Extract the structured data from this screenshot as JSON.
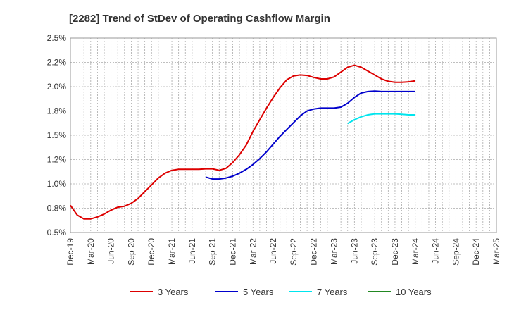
{
  "chart_data": {
    "type": "line",
    "title": "[2282]  Trend of StDev of Operating Cashflow Margin",
    "x_ticks": [
      "Dec-19",
      "Mar-20",
      "Jun-20",
      "Sep-20",
      "Dec-20",
      "Mar-21",
      "Jun-21",
      "Sep-21",
      "Dec-21",
      "Mar-22",
      "Jun-22",
      "Sep-22",
      "Dec-22",
      "Mar-23",
      "Jun-23",
      "Sep-23",
      "Dec-23",
      "Mar-24",
      "Jun-24",
      "Sep-24",
      "Dec-24",
      "Mar-25"
    ],
    "y_ticks": [
      "0.5%",
      "0.8%",
      "1.0%",
      "1.2%",
      "1.5%",
      "1.8%",
      "2.0%",
      "2.2%",
      "2.5%"
    ],
    "ylim": [
      0.5,
      2.5
    ],
    "grid": true,
    "legend_position": "bottom",
    "series": [
      {
        "name": "3 Years",
        "color": "#dd0000",
        "start": 0,
        "values": [
          0.78,
          0.68,
          0.64,
          0.64,
          0.66,
          0.69,
          0.73,
          0.76,
          0.77,
          0.8,
          0.85,
          0.92,
          0.99,
          1.06,
          1.11,
          1.14,
          1.15,
          1.15,
          1.15,
          1.15,
          1.155,
          1.155,
          1.14,
          1.16,
          1.22,
          1.3,
          1.4,
          1.54,
          1.66,
          1.78,
          1.89,
          1.99,
          2.07,
          2.11,
          2.12,
          2.115,
          2.095,
          2.08,
          2.08,
          2.1,
          2.15,
          2.2,
          2.22,
          2.2,
          2.16,
          2.12,
          2.08,
          2.055,
          2.045,
          2.045,
          2.05,
          2.06
        ]
      },
      {
        "name": "5 Years",
        "color": "#0000cc",
        "start": 20,
        "values": [
          1.07,
          1.05,
          1.05,
          1.06,
          1.08,
          1.11,
          1.15,
          1.2,
          1.26,
          1.33,
          1.41,
          1.49,
          1.56,
          1.63,
          1.7,
          1.75,
          1.77,
          1.78,
          1.78,
          1.78,
          1.79,
          1.83,
          1.89,
          1.935,
          1.95,
          1.955,
          1.95,
          1.95,
          1.95,
          1.95,
          1.95,
          1.95
        ]
      },
      {
        "name": "7 Years",
        "color": "#00e5ee",
        "start": 41,
        "values": [
          1.62,
          1.66,
          1.69,
          1.71,
          1.72,
          1.72,
          1.72,
          1.72,
          1.715,
          1.71,
          1.71
        ]
      },
      {
        "name": "10 Years",
        "color": "#228822",
        "start": 0,
        "values": []
      }
    ]
  }
}
